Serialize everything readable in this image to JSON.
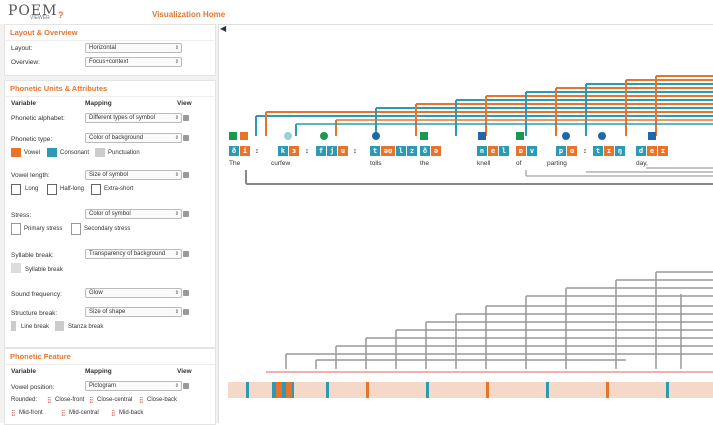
{
  "header": {
    "logo": "POEM",
    "logo_sub": "VIEWER",
    "help": "?",
    "home": "Visualization Home"
  },
  "layout_panel": {
    "title": "Layout & Overview",
    "layout_label": "Layout:",
    "layout_value": "Horizontal",
    "overview_label": "Overview:",
    "overview_value": "Focus+context"
  },
  "phonetic_units": {
    "title": "Phonetic Units & Attributes",
    "col_variable": "Variable",
    "col_mapping": "Mapping",
    "col_view": "View",
    "rows": [
      {
        "label": "Phonetic alphabet:",
        "mapping": "Different types of symbol"
      },
      {
        "label": "Phonetic type:",
        "mapping": "Color of background"
      },
      {
        "label": "Vowel length:",
        "mapping": "Size of symbol"
      },
      {
        "label": "Stress:",
        "mapping": "Color of symbol"
      },
      {
        "label": "Syllable break:",
        "mapping": "Transparency of background"
      },
      {
        "label": "Sound frequency:",
        "mapping": "Glow"
      },
      {
        "label": "Structure break:",
        "mapping": "Size of shape"
      }
    ],
    "type_legend": [
      "Vowel",
      "Consonant",
      "Punctuation"
    ],
    "length_legend": [
      "Long",
      "Half-long",
      "Extra-short"
    ],
    "stress_legend": [
      "Primary stress",
      "Secondary stress"
    ],
    "syllable_legend": "Syllable break",
    "structure_legend": [
      "Line break",
      "Stanza break"
    ]
  },
  "phonetic_feature": {
    "title": "Phonetic Feature",
    "col_variable": "Variable",
    "col_mapping": "Mapping",
    "col_view": "View",
    "vowel_label": "Vowel position:",
    "vowel_mapping": "Pictogram",
    "rounded_label": "Rounded:",
    "rounded_items": [
      "Close-front",
      "Close-central",
      "Close-back"
    ],
    "row2_items": [
      "Mid-front",
      "Mid-central",
      "Mid-back"
    ]
  },
  "words": [
    "The",
    "curfew",
    "tolls",
    "the",
    "knell",
    "of",
    "parting",
    "day,"
  ],
  "phonemes": [
    {
      "t": "ð",
      "k": "c"
    },
    {
      "t": "i",
      "k": "v"
    },
    {
      "t": ":",
      "k": "p"
    },
    {
      "t": "k",
      "k": "c"
    },
    {
      "t": "ɜ",
      "k": "v"
    },
    {
      "t": ":",
      "k": "p"
    },
    {
      "t": "f",
      "k": "c"
    },
    {
      "t": "j",
      "k": "c"
    },
    {
      "t": "u",
      "k": "v"
    },
    {
      "t": ":",
      "k": "p"
    },
    {
      "t": "t",
      "k": "c"
    },
    {
      "t": "əʊ",
      "k": "v"
    },
    {
      "t": "l",
      "k": "c"
    },
    {
      "t": "z",
      "k": "c"
    },
    {
      "t": "ð",
      "k": "c"
    },
    {
      "t": "ə",
      "k": "v"
    },
    {
      "t": "n",
      "k": "c"
    },
    {
      "t": "e",
      "k": "v"
    },
    {
      "t": "l",
      "k": "c"
    },
    {
      "t": "ɒ",
      "k": "v"
    },
    {
      "t": "v",
      "k": "c"
    },
    {
      "t": "p",
      "k": "c"
    },
    {
      "t": "ɑ",
      "k": "v"
    },
    {
      "t": ":",
      "k": "p"
    },
    {
      "t": "t",
      "k": "c"
    },
    {
      "t": "ɪ",
      "k": "v"
    },
    {
      "t": "ŋ",
      "k": "c"
    },
    {
      "t": "d",
      "k": "c"
    },
    {
      "t": "e",
      "k": "v"
    },
    {
      "t": "ɪ",
      "k": "v"
    }
  ],
  "colors": {
    "vowel": "#e8742c",
    "consonant": "#2d9ab5",
    "punctuation": "#cccccc",
    "accent": "#e8742c"
  }
}
